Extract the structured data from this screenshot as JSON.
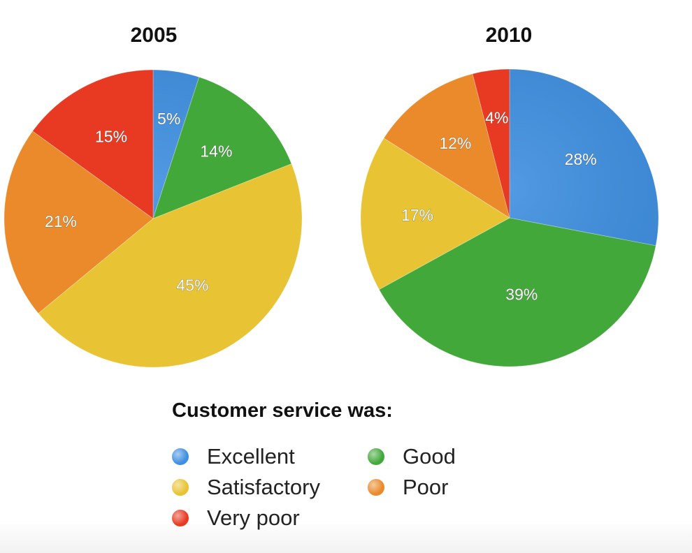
{
  "chart_data": [
    {
      "type": "pie",
      "title": "2005",
      "categories": [
        "Excellent",
        "Good",
        "Satisfactory",
        "Poor",
        "Very poor"
      ],
      "values": [
        5,
        14,
        45,
        21,
        15
      ],
      "labels": [
        "5%",
        "14%",
        "45%",
        "21%",
        "15%"
      ]
    },
    {
      "type": "pie",
      "title": "2010",
      "categories": [
        "Excellent",
        "Good",
        "Satisfactory",
        "Poor",
        "Very poor"
      ],
      "values": [
        28,
        39,
        17,
        12,
        4
      ],
      "labels": [
        "28%",
        "39%",
        "17%",
        "12%",
        "4%"
      ]
    }
  ],
  "legend": {
    "title": "Customer service was:",
    "placement": "bottom-center",
    "items": [
      {
        "label": "Excellent",
        "color": "#3f8fe0"
      },
      {
        "label": "Good",
        "color": "#42a83a"
      },
      {
        "label": "Satisfactory",
        "color": "#e8c434"
      },
      {
        "label": "Poor",
        "color": "#ea8a2a"
      },
      {
        "label": "Very poor",
        "color": "#e83a22"
      }
    ]
  }
}
